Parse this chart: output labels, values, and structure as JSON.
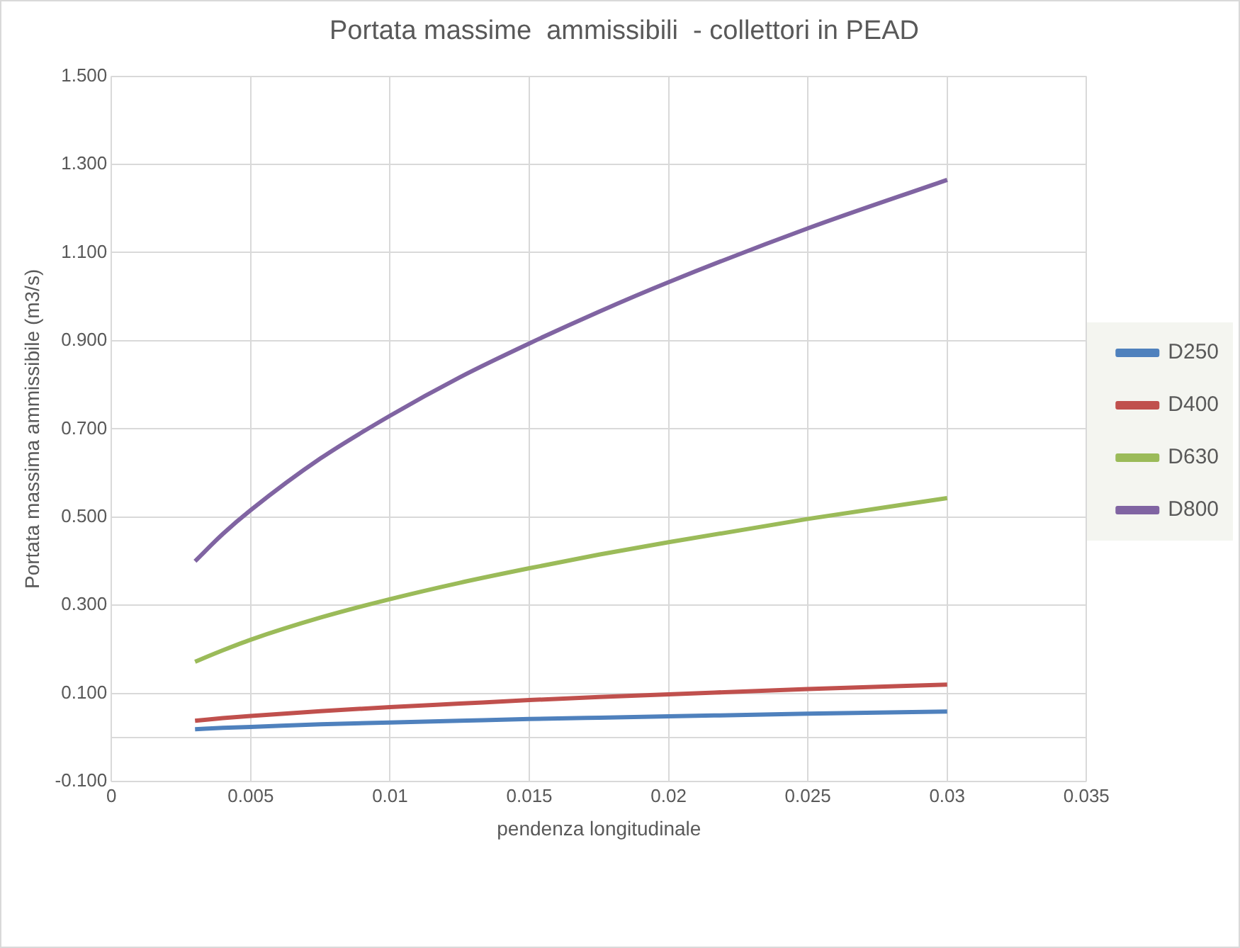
{
  "chart_data": {
    "type": "line",
    "title": "Portata massime  ammissibili  - collettori in PEAD",
    "xlabel": "pendenza longitudinale",
    "ylabel": "Portata massima ammissibile (m3/s)",
    "x": [
      0.003,
      0.004,
      0.005,
      0.0075,
      0.01,
      0.0125,
      0.015,
      0.0175,
      0.02,
      0.025,
      0.03
    ],
    "series": [
      {
        "name": "D250",
        "color": "#4f81bd",
        "values": [
          0.019,
          0.022,
          0.024,
          0.03,
          0.034,
          0.038,
          0.042,
          0.045,
          0.048,
          0.054,
          0.059
        ]
      },
      {
        "name": "D400",
        "color": "#c0504d",
        "values": [
          0.038,
          0.044,
          0.049,
          0.06,
          0.069,
          0.077,
          0.085,
          0.092,
          0.098,
          0.11,
          0.12
        ]
      },
      {
        "name": "D630",
        "color": "#9bbb59",
        "values": [
          0.172,
          0.198,
          0.222,
          0.272,
          0.314,
          0.351,
          0.384,
          0.415,
          0.443,
          0.496,
          0.543
        ]
      },
      {
        "name": "D800",
        "color": "#8064a2",
        "values": [
          0.4,
          0.462,
          0.516,
          0.633,
          0.73,
          0.817,
          0.894,
          0.966,
          1.033,
          1.155,
          1.265
        ]
      }
    ],
    "xlim": [
      0,
      0.035
    ],
    "xticks": [
      0,
      0.005,
      0.01,
      0.015,
      0.02,
      0.025,
      0.03,
      0.035
    ],
    "ylim": [
      -0.1,
      1.5
    ],
    "yticks": [
      {
        "value": -0.1,
        "label": "-0.100"
      },
      {
        "value": 0.1,
        "label": "0.100"
      },
      {
        "value": 0.3,
        "label": "0.300"
      },
      {
        "value": 0.5,
        "label": "0.500"
      },
      {
        "value": 0.7,
        "label": "0.700"
      },
      {
        "value": 0.9,
        "label": "0.900"
      },
      {
        "value": 1.1,
        "label": "1.100"
      },
      {
        "value": 1.3,
        "label": "1.300"
      },
      {
        "value": 1.5,
        "label": "1.500"
      }
    ],
    "ref_lines": [
      {
        "axis": "y",
        "value": 0,
        "color": "#d9d9d9"
      }
    ],
    "grid": true,
    "legend": "right",
    "marker": "none",
    "line_style": "solid"
  }
}
